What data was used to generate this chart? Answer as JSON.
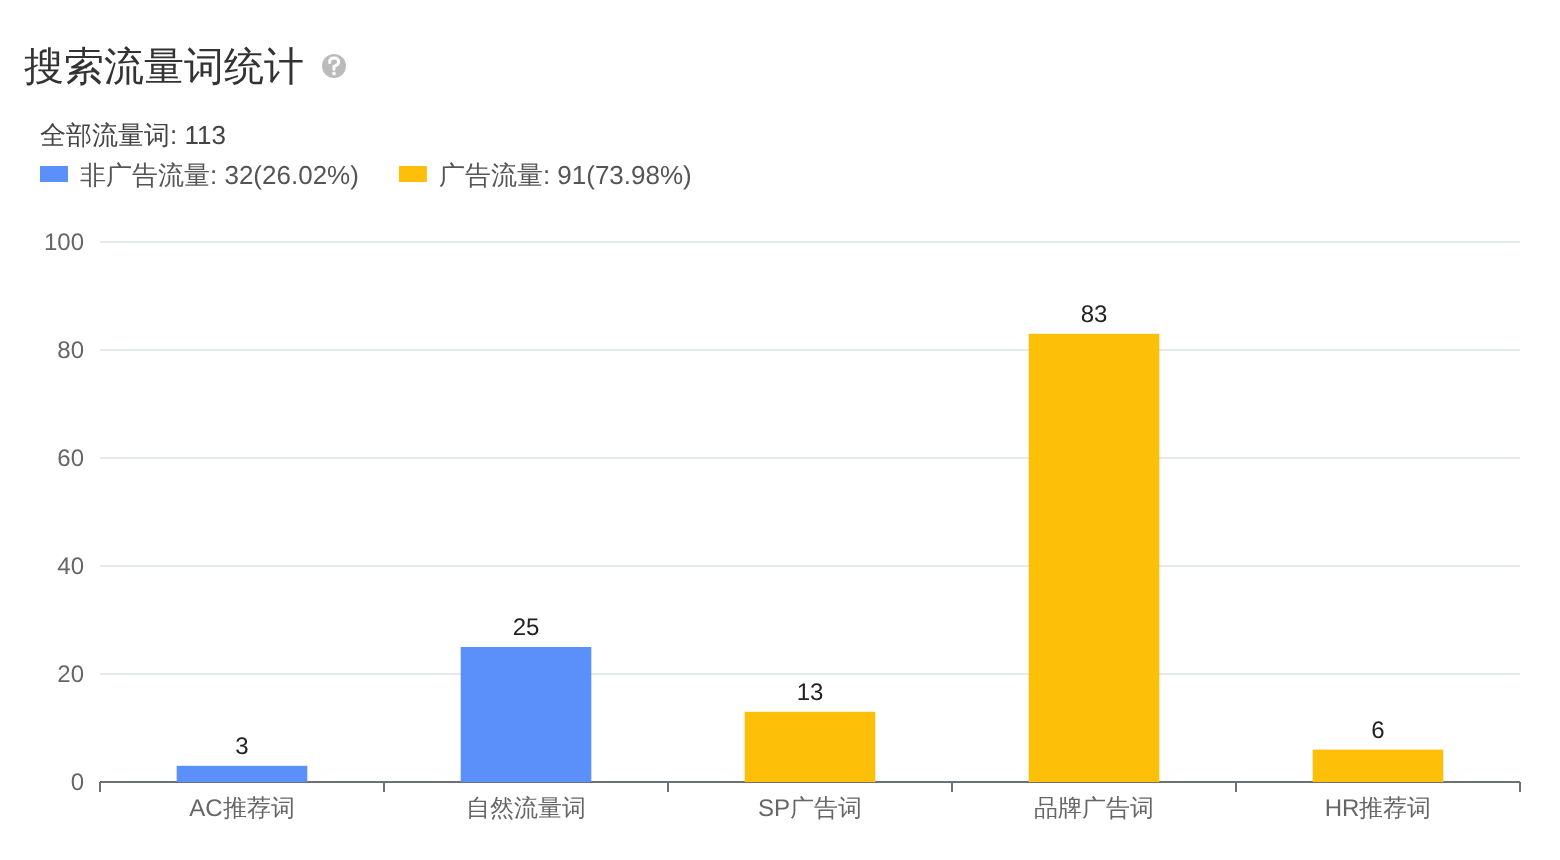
{
  "chart_data": {
    "type": "bar",
    "title": "搜索流量词统计",
    "subtitle": "全部流量词: 113",
    "categories": [
      "AC推荐词",
      "自然流量词",
      "SP广告词",
      "品牌广告词",
      "HR推荐词"
    ],
    "series": [
      {
        "name": "非广告流量: 32(26.02%)",
        "color": "#5b8ff9",
        "values": [
          3,
          25,
          null,
          null,
          null
        ]
      },
      {
        "name": "广告流量: 91(73.98%)",
        "color": "#fdbf08",
        "values": [
          null,
          null,
          13,
          83,
          6
        ]
      }
    ],
    "ylim": [
      0,
      100
    ],
    "yticks": [
      0,
      20,
      40,
      60,
      80,
      100
    ],
    "grid": "y",
    "legend": "top left",
    "data_labels": true
  }
}
